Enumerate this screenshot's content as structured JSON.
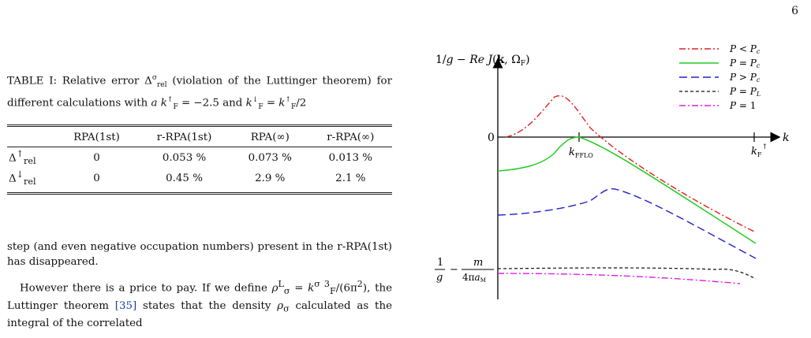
{
  "page": {
    "number": "6"
  },
  "table": {
    "caption_prefix": "TABLE I: Relative error ",
    "caption_mid": " (violation of the Luttinger theorem) for different calculations with ",
    "caption_end": " = −2.5 and ",
    "headers": [
      "",
      "RPA(1st)",
      "r-RPA(1st)",
      "RPA(∞)",
      "r-RPA(∞)"
    ],
    "rows": [
      {
        "label": "Δ↑rel",
        "values": [
          "0",
          "0.053 %",
          "0.073 %",
          "0.013 %"
        ]
      },
      {
        "label": "Δ↓rel",
        "values": [
          "0",
          "0.45 %",
          "2.9 %",
          "2.1 %"
        ]
      }
    ]
  },
  "body": {
    "p1": "step (and even negative occupation numbers) present in the r-RPA(1st) has disappeared.",
    "p2_a": "However there is a price to pay. If we define ",
    "p2_b": ", the Luttinger theorem ",
    "p2_cite": "[35]",
    "p2_c": " states that the density ",
    "p2_d": " calculated as the integral of the correlated"
  },
  "figure": {
    "y_axis_label": "1/g − Re J(k, Ω_F)",
    "x_axis_label": "k",
    "zero_label": "0",
    "kfflo_label": "k_FFLO",
    "kf_label": "k_F↑",
    "bottom_label_num": "1",
    "bottom_label_den": "g",
    "bottom_label_frac_num": "m",
    "bottom_label_frac_den": "4πa_M",
    "legend": [
      {
        "label": "P < P_c",
        "color": "#e02020",
        "dash": "8 3 2 3"
      },
      {
        "label": "P = P_c",
        "color": "#22cc22",
        "dash": "none"
      },
      {
        "label": "P > P_c",
        "color": "#2020cc",
        "dash": "10 5"
      },
      {
        "label": "P = P_L",
        "color": "#111111",
        "dash": "4 3"
      },
      {
        "label": "P = 1",
        "color": "#e020e0",
        "dash": "8 3 2 3"
      }
    ]
  }
}
